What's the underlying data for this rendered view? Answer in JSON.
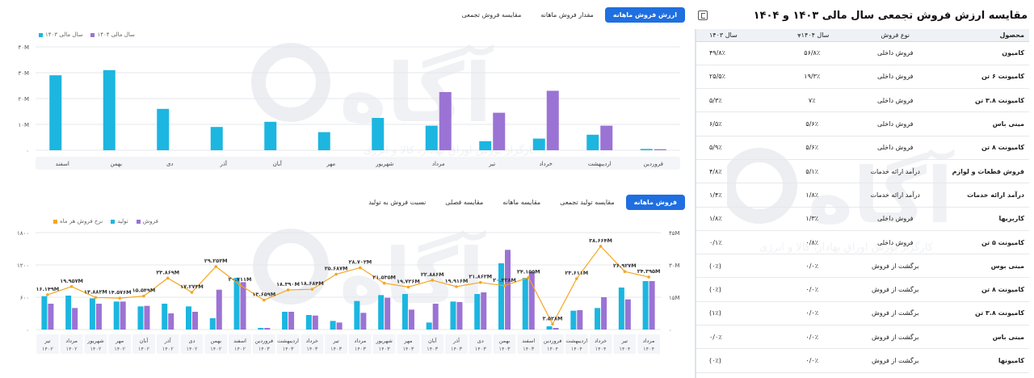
{
  "colors": {
    "bar_1403": "#1cb6e0",
    "bar_1404": "#9b73d4",
    "sales": "#9b73d4",
    "production": "#1cb6e0",
    "rate": "#f5a623",
    "tab_active": "#1f6fe0"
  },
  "icons": {
    "export": "sheet-icon",
    "sort": "chevron-down-icon"
  },
  "watermark": {
    "text": "آگاه",
    "subtitle": "کارگزار بورس اوراق بهادار، کالا و انرژی"
  },
  "table": {
    "title": "مقایسه ارزش فروش تجمعی سال مالی ۱۴۰۳ و ۱۴۰۴",
    "headers": {
      "product": "محصول",
      "type": "نوع فروش",
      "y1404": "سال ۱۴۰۴",
      "y1403": "سال ۱۴۰۳"
    },
    "rows": [
      {
        "product": "کامیون",
        "type": "فروش داخلی",
        "y1404": "۵۶/۸٪",
        "y1403": "۴۹/۸٪"
      },
      {
        "product": "کامیونت ۶ تن",
        "type": "فروش داخلی",
        "y1404": "۱۹/۳٪",
        "y1403": "۲۵/۵٪"
      },
      {
        "product": "کامیونت ۳.۸ تن",
        "type": "فروش داخلی",
        "y1404": "۷٪",
        "y1403": "۵/۳٪"
      },
      {
        "product": "مینی باس",
        "type": "فروش داخلی",
        "y1404": "۵/۶٪",
        "y1403": "۶/۵٪"
      },
      {
        "product": "کامیونت ۸ تن",
        "type": "فروش داخلی",
        "y1404": "۵/۶٪",
        "y1403": "۵/۹٪"
      },
      {
        "product": "فروش قطعات و لوازم",
        "type": "درآمد ارائه خدمات",
        "y1404": "۵/۱٪",
        "y1403": "۴/۸٪"
      },
      {
        "product": "درآمد ارائه خدمات",
        "type": "درآمد ارائه خدمات",
        "y1404": "۱/۸٪",
        "y1403": "۱/۴٪"
      },
      {
        "product": "کاربریها",
        "type": "فروش داخلی",
        "y1404": "۱/۳٪",
        "y1403": "۱/۸٪"
      },
      {
        "product": "کامیونت ۵ تن",
        "type": "فروش داخلی",
        "y1404": "۰/۸٪",
        "y1403": "۰/۱٪"
      },
      {
        "product": "مینی بوس",
        "type": "برگشت از فروش",
        "y1404": "۰/۰٪",
        "y1403": "(۰٪)"
      },
      {
        "product": "کامیونت ۸ تن",
        "type": "برگشت از فروش",
        "y1404": "۰/۰٪",
        "y1403": "(۰٪)"
      },
      {
        "product": "کامیونت ۳.۸ تن",
        "type": "برگشت از فروش",
        "y1404": "۰/۰٪",
        "y1403": "(۱٪)"
      },
      {
        "product": "مینی باس",
        "type": "برگشت از فروش",
        "y1404": "۰/۰٪",
        "y1403": "۰/۰٪"
      },
      {
        "product": "کامیونها",
        "type": "برگشت از فروش",
        "y1404": "۰/۰٪",
        "y1403": "(۰٪)"
      }
    ]
  },
  "tabs_top": {
    "items": [
      "ارزش فروش ماهانه",
      "مقدار فروش ماهانه",
      "مقایسه فروش تجمعی"
    ],
    "active": 0
  },
  "tabs_bottom": {
    "items": [
      "فروش ماهانه",
      "مقایسه تولید تجمعی",
      "مقایسه ماهانه",
      "مقایسه فصلی",
      "نسبت فروش به تولید"
    ],
    "active": 0
  },
  "chart_data": [
    {
      "type": "bar",
      "title": "",
      "legend": [
        "سال مالی ۱۴۰۳",
        "سال مالی ۱۴۰۴"
      ],
      "legend_position": "top-left",
      "grid": true,
      "ylim": [
        0,
        40
      ],
      "yticks": [
        "۰",
        "۱۰M",
        "۲۰M",
        "۳۰M",
        "۴۰M"
      ],
      "categories": [
        "فروردین",
        "اردیبهشت",
        "خرداد",
        "تیر",
        "مرداد",
        "شهریور",
        "مهر",
        "آبان",
        "آذر",
        "دی",
        "بهمن",
        "اسفند"
      ],
      "series": [
        {
          "name": "سال مالی ۱۴۰۳",
          "values": [
            0.5,
            6,
            4.5,
            3.5,
            9.5,
            12.5,
            7,
            11,
            9,
            16,
            31,
            29
          ]
        },
        {
          "name": "سال مالی ۱۴۰۴",
          "values": [
            0.4,
            9.5,
            23,
            14.5,
            22.5,
            null,
            null,
            null,
            null,
            null,
            null,
            null
          ]
        }
      ]
    },
    {
      "type": "bar",
      "title": "",
      "legend": [
        "فروش",
        "تولید",
        "نرخ فروش هر ماه"
      ],
      "legend_position": "top-left",
      "grid": true,
      "y_left_ticks": [
        "۰",
        "۶۰۰",
        "۱۲۰۰",
        "۱۸۰۰"
      ],
      "y_right_ticks": [
        "۰",
        "۱۵M",
        "۳۰M",
        "۴۵M"
      ],
      "ylim_left": [
        0,
        1800
      ],
      "ylim_right": [
        0,
        45
      ],
      "categories": [
        [
          "تیر",
          "۱۴۰۲"
        ],
        [
          "مرداد",
          "۱۴۰۲"
        ],
        [
          "شهریور",
          "۱۴۰۲"
        ],
        [
          "مهر",
          "۱۴۰۲"
        ],
        [
          "آبان",
          "۱۴۰۲"
        ],
        [
          "آذر",
          "۱۴۰۲"
        ],
        [
          "دی",
          "۱۴۰۲"
        ],
        [
          "بهمن",
          "۱۴۰۲"
        ],
        [
          "اسفند",
          "۱۴۰۲"
        ],
        [
          "فروردین",
          "۱۴۰۳"
        ],
        [
          "اردیبهشت",
          "۱۴۰۳"
        ],
        [
          "خرداد",
          "۱۴۰۳"
        ],
        [
          "تیر",
          "۱۴۰۳"
        ],
        [
          "مرداد",
          "۱۴۰۳"
        ],
        [
          "شهریور",
          "۱۴۰۳"
        ],
        [
          "مهر",
          "۱۴۰۳"
        ],
        [
          "آبان",
          "۱۴۰۳"
        ],
        [
          "آذر",
          "۱۴۰۳"
        ],
        [
          "دی",
          "۱۴۰۳"
        ],
        [
          "بهمن",
          "۱۴۰۳"
        ],
        [
          "اسفند",
          "۱۴۰۳"
        ],
        [
          "فروردین",
          "۱۴۰۴"
        ],
        [
          "اردیبهشت",
          "۱۴۰۴"
        ],
        [
          "خرداد",
          "۱۴۰۴"
        ],
        [
          "تیر",
          "۱۴۰۴"
        ],
        [
          "مرداد",
          "۱۴۰۴"
        ]
      ],
      "series": [
        {
          "name": "فروش",
          "axis": "left",
          "values": [
            480,
            400,
            480,
            520,
            440,
            300,
            330,
            740,
            880,
            30,
            330,
            260,
            130,
            310,
            590,
            370,
            480,
            510,
            690,
            1480,
            1070,
            30,
            360,
            600,
            560,
            900
          ]
        },
        {
          "name": "تولید",
          "axis": "left",
          "values": [
            620,
            630,
            580,
            520,
            430,
            480,
            430,
            210,
            960,
            30,
            330,
            270,
            160,
            530,
            640,
            660,
            130,
            520,
            660,
            1230,
            960,
            60,
            350,
            400,
            780,
            900
          ]
        },
        {
          "name": "نرخ فروش هر ماه",
          "axis": "right",
          "type": "line",
          "values": [
            16.149,
            19.957,
            14.882,
            14.576,
            15.549,
            23.869,
            17.273,
            29.253,
            20.711,
            13.659,
            18.39,
            18.684,
            25.687,
            28.702,
            21.535,
            19.726,
            22.886,
            19.916,
            21.862,
            20.328,
            24.155,
            2.528,
            23.611,
            38.664,
            26.927,
            24.395
          ],
          "labels": [
            "۱۶.۱۴۹M",
            "۱۹.۹۵۷M",
            "۱۴.۸۸۲M",
            "۱۴.۵۷۶M",
            "۱۵.۵۴۹M",
            "۲۳.۸۶۹M",
            "۱۷.۲۷۳M",
            "۲۹.۲۵۳M",
            "۲۰.۷۱۱M",
            "۱۳.۶۵۹M",
            "۱۸.۳۹۰M",
            "۱۸.۶۸۴M",
            "۲۵.۶۸۷M",
            "۲۸.۷۰۲M",
            "۲۱.۵۳۵M",
            "۱۹.۷۲۶M",
            "۲۲.۸۸۶M",
            "۱۹.۹۱۶M",
            "۲۱.۸۶۲M",
            "۲۰.۳۲۸M",
            "۲۴.۱۵۵M",
            "۲.۵۲۸M",
            "۲۳.۶۱۱M",
            "۳۸.۶۶۴M",
            "۲۶.۹۲۷M",
            "۲۴.۳۹۵M"
          ]
        }
      ]
    }
  ]
}
